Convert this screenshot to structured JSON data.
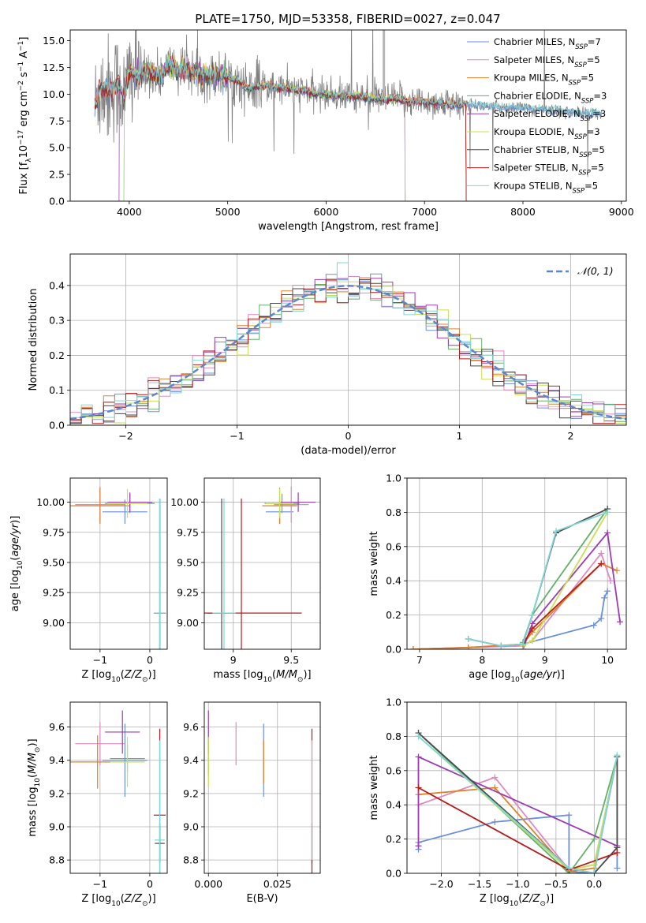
{
  "figure": {
    "title": "PLATE=1750, MJD=53358, FIBERID=0027, z=0.047"
  },
  "models": [
    {
      "name": "Chabrier MILES, N",
      "sub": "SSP",
      "n": "=7",
      "color": "#6a8fdc"
    },
    {
      "name": "Salpeter MILES, N",
      "sub": "SSP",
      "n": "=5",
      "color": "#e08ac2"
    },
    {
      "name": "Kroupa MILES, N",
      "sub": "SSP",
      "n": "=5",
      "color": "#e0812a"
    },
    {
      "name": "Chabrier ELODIE, N",
      "sub": "SSP",
      "n": "=3",
      "color": "#62b06a"
    },
    {
      "name": "Salpeter ELODIE, N",
      "sub": "SSP",
      "n": "=3",
      "color": "#9b3cb4"
    },
    {
      "name": "Kroupa ELODIE, N",
      "sub": "SSP",
      "n": "=3",
      "color": "#c8e052"
    },
    {
      "name": "Chabrier STELIB, N",
      "sub": "SSP",
      "n": "=5",
      "color": "#4a4a4a"
    },
    {
      "name": "Salpeter STELIB, N",
      "sub": "SSP",
      "n": "=5",
      "color": "#b51c1c"
    },
    {
      "name": "Kroupa STELIB, N",
      "sub": "SSP",
      "n": "=5",
      "color": "#7ed6d6"
    }
  ],
  "chart_data": [
    {
      "id": "spectrum",
      "type": "line",
      "title": "PLATE=1750, MJD=53358, FIBERID=0027, z=0.047",
      "xlabel": "wavelength [Angstrom, rest frame]",
      "ylabel": "Flux [fλ10⁻¹⁷ erg cm⁻² s⁻¹ A⁻¹]",
      "xlim": [
        3400,
        9050
      ],
      "ylim": [
        0,
        16
      ],
      "xticks": [
        4000,
        5000,
        6000,
        7000,
        8000,
        9000
      ],
      "yticks": [
        0.0,
        2.5,
        5.0,
        7.5,
        10.0,
        12.5,
        15.0
      ],
      "data_color": "#808080",
      "data_points": [
        [
          3650,
          8.8
        ],
        [
          3700,
          10.5
        ],
        [
          3800,
          10.4
        ],
        [
          3900,
          11.0
        ],
        [
          3950,
          9.5
        ],
        [
          4000,
          12.0
        ],
        [
          4100,
          11.8
        ],
        [
          4200,
          12.3
        ],
        [
          4300,
          11.5
        ],
        [
          4400,
          12.8
        ],
        [
          4500,
          12.2
        ],
        [
          4600,
          12.3
        ],
        [
          4700,
          12.0
        ],
        [
          4800,
          11.7
        ],
        [
          4900,
          11.8
        ],
        [
          5000,
          11.6
        ],
        [
          5100,
          11.2
        ],
        [
          5200,
          10.6
        ],
        [
          5300,
          10.7
        ],
        [
          5400,
          10.8
        ],
        [
          5500,
          10.6
        ],
        [
          5600,
          10.5
        ],
        [
          5700,
          10.4
        ],
        [
          5800,
          10.3
        ],
        [
          5900,
          10.0
        ],
        [
          6000,
          10.0
        ],
        [
          6100,
          9.9
        ],
        [
          6200,
          9.8
        ],
        [
          6300,
          9.8
        ],
        [
          6400,
          9.7
        ],
        [
          6500,
          9.6
        ],
        [
          6600,
          9.5
        ],
        [
          6700,
          9.6
        ],
        [
          6800,
          9.4
        ],
        [
          6900,
          9.3
        ],
        [
          7000,
          9.3
        ],
        [
          7100,
          9.2
        ],
        [
          7200,
          9.1
        ],
        [
          7300,
          9.0
        ],
        [
          7400,
          9.0
        ],
        [
          7500,
          9.0
        ],
        [
          7600,
          8.9
        ],
        [
          7700,
          8.8
        ],
        [
          7800,
          8.8
        ],
        [
          7900,
          8.8
        ],
        [
          8000,
          8.7
        ],
        [
          8100,
          8.6
        ],
        [
          8200,
          8.6
        ],
        [
          8300,
          8.5
        ],
        [
          8400,
          8.4
        ],
        [
          8500,
          8.3
        ],
        [
          8600,
          8.2
        ],
        [
          8700,
          8.3
        ],
        [
          8800,
          8.2
        ]
      ]
    },
    {
      "id": "residuals",
      "type": "line",
      "xlabel": "(data-model)/error",
      "ylabel": "Normed distribution",
      "xlim": [
        -2.5,
        2.5
      ],
      "ylim": [
        0,
        0.49
      ],
      "xticks": [
        -2,
        -1,
        0,
        1,
        2
      ],
      "yticks": [
        0.0,
        0.1,
        0.2,
        0.3,
        0.4
      ],
      "legend": "𝒩(0, 1)",
      "legend_position": "top-right",
      "gaussian": {
        "mean": 0,
        "sigma": 1
      },
      "bin_width": 0.1
    },
    {
      "id": "age-vs-Z",
      "type": "scatter",
      "xlabel": "Z [log₁₀(Z/Z⊙)]",
      "ylabel": "age  [log₁₀(age/yr)]",
      "xlim": [
        -1.6,
        0.35
      ],
      "ylim": [
        8.78,
        10.2
      ],
      "xticks": [
        -1,
        0
      ],
      "yticks": [
        9.0,
        9.25,
        9.5,
        9.75,
        10.0
      ],
      "ytick_labels": [
        "9.00",
        "9.25",
        "9.50",
        "9.75",
        "10.00"
      ],
      "points": [
        {
          "x": -0.5,
          "y": 9.92,
          "xerr": 0.45,
          "yerr": 0.1
        },
        {
          "x": -1.0,
          "y": 9.98,
          "xerr": 0.5,
          "yerr": 0.15
        },
        {
          "x": -1.0,
          "y": 9.97,
          "xerr": 0.6,
          "yerr": 0.15
        },
        {
          "x": -0.4,
          "y": 9.99,
          "xerr": 0.5,
          "yerr": 0.08
        },
        {
          "x": -0.4,
          "y": 10.0,
          "xerr": 0.45,
          "yerr": 0.08
        },
        {
          "x": -0.45,
          "y": 9.99,
          "xerr": 0.4,
          "yerr": 0.12
        },
        {
          "x": 0.2,
          "y": 9.08,
          "xerr": 0.12,
          "yerr": 0.95
        },
        {
          "x": 0.2,
          "y": 9.08,
          "xerr": 0.12,
          "yerr": 0.95
        },
        {
          "x": 0.2,
          "y": 9.08,
          "xerr": 0.12,
          "yerr": 0.95
        }
      ]
    },
    {
      "id": "age-vs-mass",
      "type": "scatter",
      "xlabel": "mass [log₁₀(M/M⊙)]",
      "ylabel": "",
      "xlim": [
        8.75,
        9.75
      ],
      "ylim": [
        8.78,
        10.2
      ],
      "xticks": [
        9.0,
        9.5
      ],
      "yticks": [
        9.0,
        9.25,
        9.5,
        9.75,
        10.0
      ],
      "ytick_labels": [
        "9.00",
        "9.25",
        "9.50",
        "9.75",
        "10.00"
      ],
      "points": [
        {
          "x": 9.4,
          "y": 9.92,
          "xerr": 0.12,
          "yerr": 0.1
        },
        {
          "x": 9.5,
          "y": 9.98,
          "xerr": 0.15,
          "yerr": 0.15
        },
        {
          "x": 9.4,
          "y": 9.97,
          "xerr": 0.15,
          "yerr": 0.15
        },
        {
          "x": 9.42,
          "y": 9.99,
          "xerr": 0.15,
          "yerr": 0.08
        },
        {
          "x": 9.56,
          "y": 10.0,
          "xerr": 0.15,
          "yerr": 0.08
        },
        {
          "x": 9.4,
          "y": 9.99,
          "xerr": 0.12,
          "yerr": 0.12
        },
        {
          "x": 8.9,
          "y": 9.08,
          "xerr": 0.12,
          "yerr": 0.95
        },
        {
          "x": 9.07,
          "y": 9.08,
          "xerr": 0.52,
          "yerr": 0.95
        },
        {
          "x": 8.92,
          "y": 9.08,
          "xerr": 0.1,
          "yerr": 0.95
        }
      ]
    },
    {
      "id": "weight-vs-age",
      "type": "line",
      "xlabel": "age  [log₁₀(age/yr)]",
      "ylabel": "mass weight",
      "xlim": [
        6.8,
        10.3
      ],
      "ylim": [
        0,
        1
      ],
      "xticks": [
        7,
        8,
        9,
        10
      ],
      "yticks": [
        0.0,
        0.2,
        0.4,
        0.6,
        0.8,
        1.0
      ],
      "series": [
        {
          "x": [
            6.9,
            7.78,
            8.3,
            8.65,
            9.78,
            9.9,
            9.95,
            10.0
          ],
          "y": [
            0.0,
            0.01,
            0.02,
            0.03,
            0.14,
            0.18,
            0.3,
            0.34
          ]
        },
        {
          "x": [
            6.9,
            7.78,
            8.65,
            8.8,
            9.9,
            10.05
          ],
          "y": [
            0.0,
            0.01,
            0.02,
            0.05,
            0.56,
            0.4
          ]
        },
        {
          "x": [
            6.9,
            7.78,
            8.65,
            8.8,
            9.9,
            10.15
          ],
          "y": [
            0.0,
            0.01,
            0.03,
            0.1,
            0.5,
            0.46
          ]
        },
        {
          "x": [
            8.65,
            8.8,
            10.0
          ],
          "y": [
            0.04,
            0.2,
            0.82
          ]
        },
        {
          "x": [
            8.65,
            8.8,
            10.0,
            10.2
          ],
          "y": [
            0.0,
            0.15,
            0.68,
            0.16
          ]
        },
        {
          "x": [
            8.65,
            8.8,
            10.0
          ],
          "y": [
            0.02,
            0.05,
            0.8
          ]
        },
        {
          "x": [
            7.78,
            8.3,
            8.65,
            8.8,
            9.18,
            10.0
          ],
          "y": [
            0.06,
            0.02,
            0.03,
            0.2,
            0.68,
            0.82
          ]
        },
        {
          "x": [
            8.65,
            8.8,
            9.9
          ],
          "y": [
            0.03,
            0.12,
            0.5
          ]
        },
        {
          "x": [
            7.78,
            8.3,
            8.65,
            8.8,
            9.18,
            10.0
          ],
          "y": [
            0.06,
            0.02,
            0.03,
            0.2,
            0.69,
            0.8
          ]
        }
      ]
    },
    {
      "id": "mass-vs-Z",
      "type": "scatter",
      "xlabel": "Z [log₁₀(Z/Z⊙)]",
      "ylabel": "mass [log₁₀(M/M⊙)]",
      "xlim": [
        -1.6,
        0.35
      ],
      "ylim": [
        8.72,
        9.75
      ],
      "xticks": [
        -1,
        0
      ],
      "yticks": [
        8.8,
        9.0,
        9.2,
        9.4,
        9.6
      ],
      "points": [
        {
          "x": -0.5,
          "y": 9.4,
          "xerr": 0.45,
          "yerr": 0.22
        },
        {
          "x": -1.0,
          "y": 9.5,
          "xerr": 0.5,
          "yerr": 0.13
        },
        {
          "x": -1.05,
          "y": 9.39,
          "xerr": 0.6,
          "yerr": 0.16
        },
        {
          "x": -0.45,
          "y": 9.41,
          "xerr": 0.35,
          "yerr": 0.08
        },
        {
          "x": -0.55,
          "y": 9.57,
          "xerr": 0.35,
          "yerr": 0.13
        },
        {
          "x": -0.45,
          "y": 9.39,
          "xerr": 0.35,
          "yerr": 0.15
        },
        {
          "x": 0.2,
          "y": 8.9,
          "xerr": 0.1,
          "yerr": 0.12
        },
        {
          "x": 0.2,
          "y": 9.07,
          "xerr": 0.12,
          "yerr": 0.52
        },
        {
          "x": 0.2,
          "y": 8.92,
          "xerr": 0.1,
          "yerr": 0.6
        }
      ]
    },
    {
      "id": "mass-vs-ebv",
      "type": "scatter",
      "xlabel": "E(B-V)",
      "ylabel": "",
      "xlim": [
        -0.0015,
        0.0405
      ],
      "ylim": [
        8.72,
        9.75
      ],
      "xticks": [
        0.0,
        0.025
      ],
      "xtick_labels": [
        "0.000",
        "0.025"
      ],
      "yticks": [
        8.8,
        9.0,
        9.2,
        9.4,
        9.6
      ],
      "points": [
        {
          "x": 0.02,
          "y": 9.4,
          "xerr": 0,
          "yerr": 0.22
        },
        {
          "x": 0.01,
          "y": 9.5,
          "xerr": 0,
          "yerr": 0.13
        },
        {
          "x": 0.02,
          "y": 9.39,
          "xerr": 0,
          "yerr": 0.13
        },
        {
          "x": 0.0,
          "y": 9.41,
          "xerr": 0,
          "yerr": 0.1
        },
        {
          "x": 0.0,
          "y": 9.57,
          "xerr": 0,
          "yerr": 0.13
        },
        {
          "x": 0.0,
          "y": 9.39,
          "xerr": 0,
          "yerr": 0.15
        },
        {
          "x": 0.0375,
          "y": 8.9,
          "xerr": 0,
          "yerr": 0.12
        },
        {
          "x": 0.0375,
          "y": 9.07,
          "xerr": 0,
          "yerr": 0.52
        },
        {
          "x": 0.0375,
          "y": 9.16,
          "xerr": 0,
          "yerr": 0.36
        }
      ]
    },
    {
      "id": "weight-vs-Z",
      "type": "line",
      "xlabel": "Z [log₁₀(Z/Z⊙)]",
      "ylabel": "mass weight",
      "xlim": [
        -2.45,
        0.42
      ],
      "ylim": [
        0,
        1
      ],
      "xticks": [
        -2.0,
        -1.5,
        -1.0,
        -0.5,
        0.0
      ],
      "xtick_labels": [
        "−2.0",
        "−1.5",
        "−1.0",
        "−0.5",
        "0.0"
      ],
      "yticks": [
        0.0,
        0.2,
        0.4,
        0.6,
        0.8,
        1.0
      ],
      "series": [
        {
          "x": [
            -2.3,
            -2.3,
            -1.3,
            -0.33,
            -0.33,
            0.0,
            0.3,
            0.3
          ],
          "y": [
            0.14,
            0.18,
            0.3,
            0.34,
            0.01,
            0.0,
            0.68,
            0.03
          ]
        },
        {
          "x": [
            -2.3,
            -1.3,
            -0.33,
            0.0,
            0.3
          ],
          "y": [
            0.4,
            0.56,
            0.02,
            0.05,
            0.68
          ]
        },
        {
          "x": [
            -2.3,
            -1.3,
            -0.33,
            0.0,
            0.3
          ],
          "y": [
            0.46,
            0.5,
            0.01,
            0.03,
            0.68
          ]
        },
        {
          "x": [
            -2.3,
            -0.33,
            0.0,
            0.3
          ],
          "y": [
            0.82,
            0.0,
            0.2,
            0.68
          ]
        },
        {
          "x": [
            -2.3,
            -2.3,
            0.3
          ],
          "y": [
            0.16,
            0.68,
            0.16
          ]
        },
        {
          "x": [
            -2.3,
            -0.33,
            0.0,
            0.3
          ],
          "y": [
            0.8,
            0.02,
            0.05,
            0.68
          ]
        },
        {
          "x": [
            -2.3,
            -0.33,
            0.0,
            0.3,
            0.3
          ],
          "y": [
            0.82,
            0.03,
            0.0,
            0.15,
            0.68
          ]
        },
        {
          "x": [
            -2.3,
            -0.33,
            0.3
          ],
          "y": [
            0.5,
            0.02,
            0.12
          ]
        },
        {
          "x": [
            -2.3,
            -0.33,
            0.0,
            0.3
          ],
          "y": [
            0.8,
            0.03,
            0.0,
            0.69
          ]
        }
      ]
    }
  ]
}
